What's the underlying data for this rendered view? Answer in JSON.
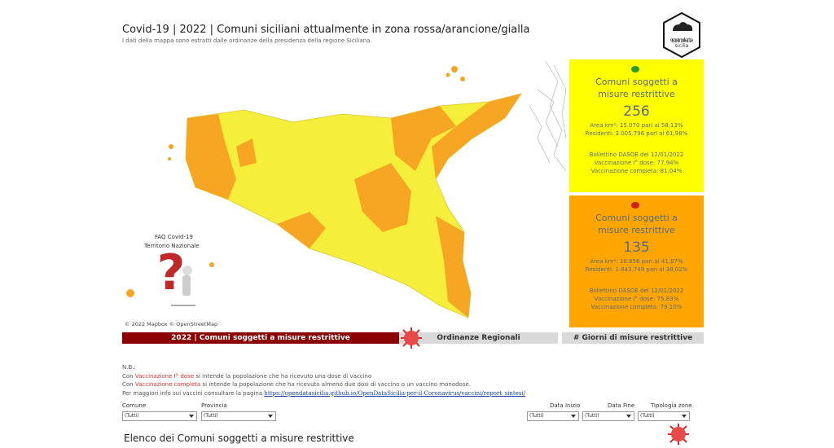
{
  "header": {
    "title": "Covid-19 | 2022 | Comuni siciliani attualmente in zona rossa/arancione/gialla",
    "subtitle": "I dati della mappa sono estratti dalle ordinanze della presidenza della regione Siciliana.",
    "logo": "opendata sicilia"
  },
  "map": {
    "credit": "© 2022 Mapbox © OpenStreetMap",
    "faq": [
      "FAQ Covid-19",
      "Territorio Nazionale"
    ]
  },
  "panels": [
    {
      "title": "Comuni soggetti a misure restrittive",
      "count": "256",
      "area": "Area km²: 15.070 pari al 58,13%",
      "residents": "Residenti: 3.005.796 parl al 61,98%",
      "bulletin": "Bollettino DASOE del 12/01/2022",
      "dose1": "Vaccinazione I° dose: 77,94%",
      "full": "Vaccinazione completa: 81,04%"
    },
    {
      "title": "Comuni soggetti a misure restrittive",
      "count": "135",
      "area": "Area km²: 10.856 pari al 41,87%",
      "residents": "Residenti: 1.843.749 pari al 38,02%",
      "bulletin": "Bollettino DASOE del 12/01/2022",
      "dose1": "Vaccinazione I° dose: 75,83%",
      "full": "Vaccinazione completa: 79,10%"
    }
  ],
  "tabs": [
    "2022 | Comuni soggetti a misure restrittive",
    "Ordinanze Regionali",
    "# Giorni di misure restrittive"
  ],
  "notes": {
    "nb": "N.B.:",
    "line1": [
      "Con ",
      "Vaccinazione I° dose",
      " si intende la popolazione che ha ricevuto  una dose di vaccino"
    ],
    "line2": [
      "Con ",
      "Vaccinazione completa",
      "  si intende la popolazione che ha ricevuto almeno due dosi di vaccino o un vaccino monodose."
    ],
    "line3": "Per maggiori info sui vaccini consultare la pagina",
    "link": "https://opendatasicilia.github.io/OpenDataSicilia-per-il-Coronavirus/vaccini/report_sintesi/"
  },
  "filters": [
    {
      "label": "Comune",
      "value": "(Tutti)"
    },
    {
      "label": "Provincia",
      "value": "(Tutti)"
    },
    {
      "label": "Data Inizio",
      "value": "(Tutti)"
    },
    {
      "label": "Data Fine",
      "value": "(Tutti)"
    },
    {
      "label": "Tipologia zone",
      "value": "(Tutti)"
    }
  ],
  "section_title": "Elenco dei Comuni soggetti a misure restrittive"
}
